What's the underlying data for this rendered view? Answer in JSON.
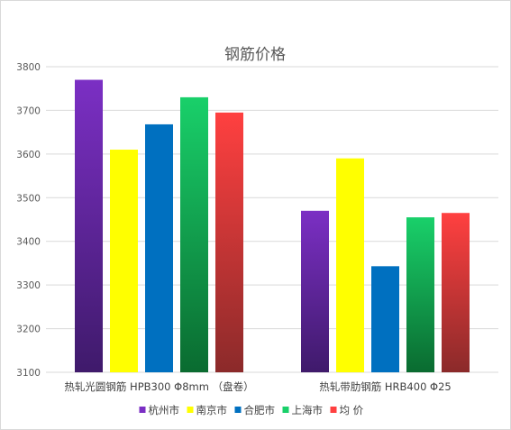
{
  "chart_data": {
    "type": "bar",
    "title": "钢筋价格",
    "categories": [
      "热轧光圆钢筋 HPB300 Φ8mm （盘卷）",
      "热轧带肋钢筋 HRB400 Φ25"
    ],
    "series": [
      {
        "name": "杭州市",
        "values": [
          3770,
          3470
        ],
        "color_top": "#7b2fc4",
        "color_bottom": "#3f1a6b"
      },
      {
        "name": "南京市",
        "values": [
          3610,
          3590
        ],
        "color_top": "#ffff00",
        "color_bottom": "#ffff00"
      },
      {
        "name": "合肥市",
        "values": [
          3668,
          3343
        ],
        "color_top": "#0070c0",
        "color_bottom": "#0070c0"
      },
      {
        "name": "上海市",
        "values": [
          3730,
          3455
        ],
        "color_top": "#19d06a",
        "color_bottom": "#0a6b30"
      },
      {
        "name": "均  价",
        "values": [
          3695,
          3465
        ],
        "color_top": "#ff4040",
        "color_bottom": "#8b2a2a"
      }
    ],
    "ylim": [
      3100,
      3800
    ],
    "yticks": [
      3100,
      3200,
      3300,
      3400,
      3500,
      3600,
      3700,
      3800
    ],
    "grid": true,
    "legend": "bottom",
    "xlabel": "",
    "ylabel": ""
  }
}
